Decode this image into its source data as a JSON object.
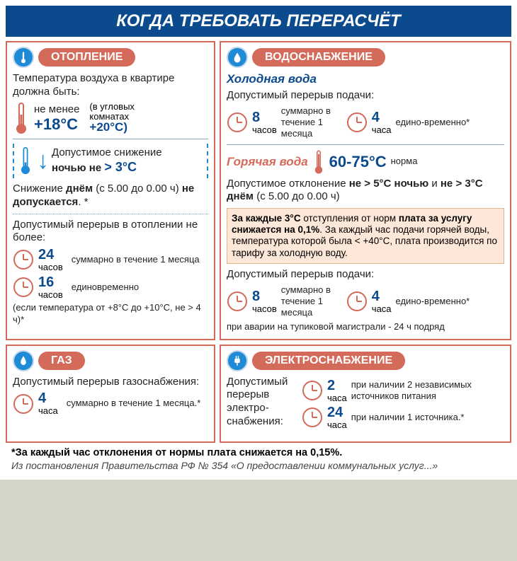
{
  "colors": {
    "header_bg": "#0b4a8c",
    "card_border": "#d46a5a",
    "icon_bg": "#1f8bd6",
    "callout_bg": "#fce7d8",
    "callout_border": "#e6b68f",
    "accent_blue": "#0b4a8c",
    "accent_red": "#d46a5a"
  },
  "typography": {
    "title_fontsize": 24,
    "header_label_fontsize": 16,
    "body_fontsize": 15,
    "bignum_fontsize": 18,
    "bigtemp_fontsize": 22,
    "subtitle_fontsize": 17,
    "callout_fontsize": 13.5,
    "footer_fontsize": 14
  },
  "title": "КОГДА ТРЕБОВАТЬ ПЕРЕРАСЧЁТ",
  "heating": {
    "header": "ОТОПЛЕНИЕ",
    "line1": "Температура воздуха в квартире должна быть:",
    "min_temp_label": "не менее",
    "min_temp": "+18°С",
    "corner_note_1": "(в угловых",
    "corner_note_2": "комнатах",
    "corner_temp": "+20°С)",
    "night_drop_1": "Допустимое снижение",
    "night_drop_2_pre": "ночью не ",
    "night_drop_2_val": "> 3°С",
    "day_text_html": "Снижение <b>днём</b> (с 5.00 до 0.00 ч) <b>не допускается</b>. *",
    "break_intro": "Допустимый перерыв в отоплении не более:",
    "b24_num": "24",
    "b24_unit": "часов",
    "b24_note": "суммарно в течение 1 месяца",
    "b16_num": "16",
    "b16_unit": "часов",
    "b16_note": "единовременно",
    "cond": "(если температура от +8°С до +10°С, не > 4 ч)*"
  },
  "water": {
    "header": "ВОДОСНАБЖЕНИЕ",
    "cold_title": "Холодная вода",
    "break_intro": "Допустимый перерыв подачи:",
    "c8_num": "8",
    "c8_unit": "часов",
    "c8_note": "суммарно в течение 1 месяца",
    "c4_num": "4",
    "c4_unit": "часа",
    "c4_note": "едино-временно*",
    "hot_title": "Горячая вода",
    "hot_range": "60-75°С",
    "hot_norm": "норма",
    "hot_dev_html": "Допустимое отклонение <b>не > 5°С ночью</b> и <b>не > 3°С днём</b> (с 5.00 до 0.00 ч)",
    "callout_html": "<b>За каждые 3°С</b> отступления от норм <b>плата за услугу снижается на 0,1%</b>. За каждый час подачи горячей воды, температура которой была &lt; +40°С, плата производится по тарифу за холодную воду.",
    "h8_num": "8",
    "h8_unit": "часов",
    "h8_note": "суммарно в течение 1 месяца",
    "h4_num": "4",
    "h4_unit": "часа",
    "h4_note": "едино-временно*",
    "accident": "при аварии на тупиковой магистрали - 24 ч подряд"
  },
  "gas": {
    "header": "ГАЗ",
    "intro": "Допустимый перерыв газоснабжения:",
    "g4_num": "4",
    "g4_unit": "часа",
    "g4_note": "суммарно в течение 1 месяца.*"
  },
  "electro": {
    "header": "ЭЛЕКТРОСНАБЖЕНИЕ",
    "intro": "Допустимый перерыв электро-снабжения:",
    "e2_num": "2",
    "e2_unit": "часа",
    "e2_note": "при наличии 2 независимых источников питания",
    "e24_num": "24",
    "e24_unit": "часа",
    "e24_note": "при наличии 1 источника.*"
  },
  "footer": {
    "line1": "*За каждый час отклонения от нормы плата снижается на 0,15%.",
    "line2": "Из постановления Правительства РФ № 354 «О предоставлении коммунальных услуг...»"
  }
}
